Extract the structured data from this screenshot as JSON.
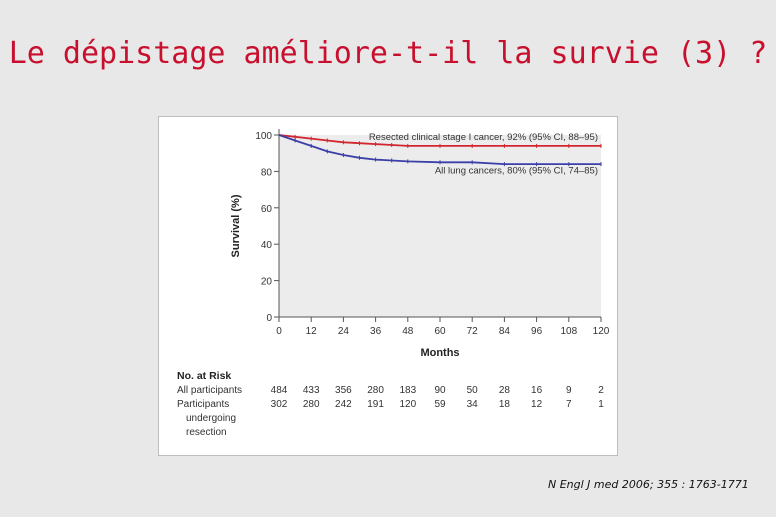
{
  "slide": {
    "title": "Le dépistage améliore-t-il la survie (3) ?",
    "citation": "N Engl J med 2006; 355 : 1763-1771"
  },
  "chart_data": {
    "type": "line",
    "xlabel": "Months",
    "ylabel": "Survival (%)",
    "xlim": [
      0,
      120
    ],
    "ylim": [
      0,
      100
    ],
    "x_ticks": [
      "0",
      "12",
      "24",
      "36",
      "48",
      "60",
      "72",
      "84",
      "96",
      "108",
      "120"
    ],
    "y_ticks": [
      "0",
      "20",
      "40",
      "60",
      "80",
      "100"
    ],
    "grid": false,
    "colors": {
      "resected": "#d22630",
      "all": "#3b3fa8",
      "plot_bg": "#ececec"
    },
    "series": [
      {
        "name": "Resected clinical stage I cancer, 92% (95% CI, 88–95)",
        "x": [
          0,
          6,
          12,
          18,
          24,
          30,
          36,
          42,
          48,
          60,
          72,
          84,
          96,
          108,
          120
        ],
        "y": [
          100,
          99,
          98,
          97,
          96,
          95.5,
          95,
          94.5,
          94,
          94,
          94,
          94,
          94,
          94,
          94
        ]
      },
      {
        "name": "All lung cancers, 80% (95% CI, 74–85)",
        "x": [
          0,
          6,
          12,
          18,
          24,
          30,
          36,
          42,
          48,
          60,
          72,
          84,
          96,
          108,
          120
        ],
        "y": [
          100,
          97,
          94,
          91,
          89,
          87.5,
          86.5,
          86,
          85.5,
          85,
          85,
          84,
          84,
          84,
          84
        ]
      }
    ],
    "risk_table": {
      "title": "No. at Risk",
      "rows": [
        {
          "label": "All participants",
          "values": [
            "484",
            "433",
            "356",
            "280",
            "183",
            "90",
            "50",
            "28",
            "16",
            "9",
            "2"
          ]
        },
        {
          "label": "Participants",
          "label2": "undergoing",
          "label3": "resection",
          "values": [
            "302",
            "280",
            "242",
            "191",
            "120",
            "59",
            "34",
            "18",
            "12",
            "7",
            "1"
          ]
        }
      ]
    }
  }
}
